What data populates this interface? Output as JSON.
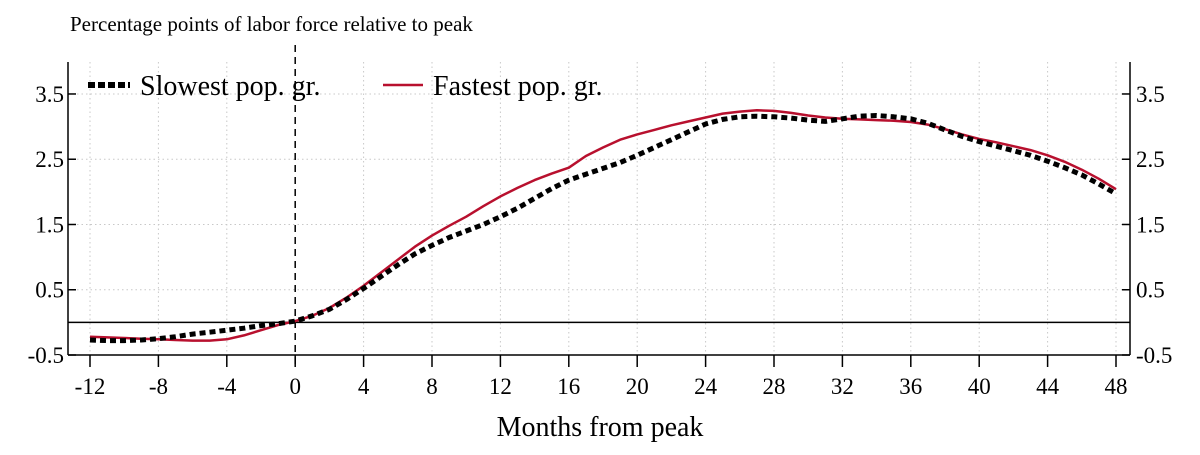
{
  "chart_data": {
    "type": "line",
    "title": "",
    "ylabel": "Percentage points of labor force relative to peak",
    "xlabel": "Months from peak",
    "xlim": [
      -12,
      48
    ],
    "ylim": [
      -0.5,
      4.0
    ],
    "x_ticks": [
      -12,
      -8,
      -4,
      0,
      4,
      8,
      12,
      16,
      20,
      24,
      28,
      32,
      36,
      40,
      44,
      48
    ],
    "x_tick_labels": [
      "-12",
      "-8",
      "-4",
      "0",
      "4",
      "8",
      "12",
      "16",
      "20",
      "24",
      "28",
      "32",
      "36",
      "40",
      "44",
      "48"
    ],
    "y_ticks": [
      -0.5,
      0.5,
      1.5,
      2.5,
      3.5
    ],
    "y_tick_labels": [
      "-0.5",
      "0.5",
      "1.5",
      "2.5",
      "3.5"
    ],
    "grid": true,
    "reference_lines": {
      "vertical_x": 0,
      "horizontal_y": 0
    },
    "legend_position": "top-left",
    "x": [
      -12,
      -11,
      -10,
      -9,
      -8,
      -7,
      -6,
      -5,
      -4,
      -3,
      -2,
      -1,
      0,
      1,
      2,
      3,
      4,
      5,
      6,
      7,
      8,
      9,
      10,
      11,
      12,
      13,
      14,
      15,
      16,
      17,
      18,
      19,
      20,
      21,
      22,
      23,
      24,
      25,
      26,
      27,
      28,
      29,
      30,
      31,
      32,
      33,
      34,
      35,
      36,
      37,
      38,
      39,
      40,
      41,
      42,
      43,
      44,
      45,
      46,
      47,
      48
    ],
    "series": [
      {
        "name": "Slowest pop. gr.",
        "color": "#000000",
        "style": "dashed",
        "values": [
          -0.27,
          -0.28,
          -0.28,
          -0.27,
          -0.25,
          -0.22,
          -0.18,
          -0.15,
          -0.12,
          -0.09,
          -0.05,
          -0.02,
          0.02,
          0.1,
          0.2,
          0.35,
          0.52,
          0.7,
          0.88,
          1.05,
          1.18,
          1.3,
          1.4,
          1.5,
          1.62,
          1.75,
          1.9,
          2.05,
          2.18,
          2.27,
          2.36,
          2.45,
          2.56,
          2.68,
          2.8,
          2.92,
          3.04,
          3.11,
          3.15,
          3.16,
          3.15,
          3.13,
          3.1,
          3.08,
          3.12,
          3.16,
          3.17,
          3.15,
          3.12,
          3.05,
          2.95,
          2.85,
          2.77,
          2.7,
          2.63,
          2.56,
          2.47,
          2.37,
          2.26,
          2.12,
          1.97
        ]
      },
      {
        "name": "Fastest pop. gr.",
        "color": "#b8102e",
        "style": "solid",
        "values": [
          -0.22,
          -0.23,
          -0.24,
          -0.25,
          -0.26,
          -0.27,
          -0.28,
          -0.28,
          -0.26,
          -0.2,
          -0.12,
          -0.04,
          0.02,
          0.1,
          0.22,
          0.38,
          0.56,
          0.76,
          0.96,
          1.16,
          1.33,
          1.48,
          1.62,
          1.78,
          1.93,
          2.06,
          2.18,
          2.28,
          2.37,
          2.55,
          2.68,
          2.8,
          2.88,
          2.95,
          3.02,
          3.08,
          3.14,
          3.2,
          3.23,
          3.25,
          3.24,
          3.21,
          3.17,
          3.14,
          3.12,
          3.11,
          3.1,
          3.09,
          3.07,
          3.03,
          2.96,
          2.88,
          2.81,
          2.76,
          2.7,
          2.64,
          2.56,
          2.46,
          2.34,
          2.2,
          2.04
        ]
      }
    ]
  }
}
